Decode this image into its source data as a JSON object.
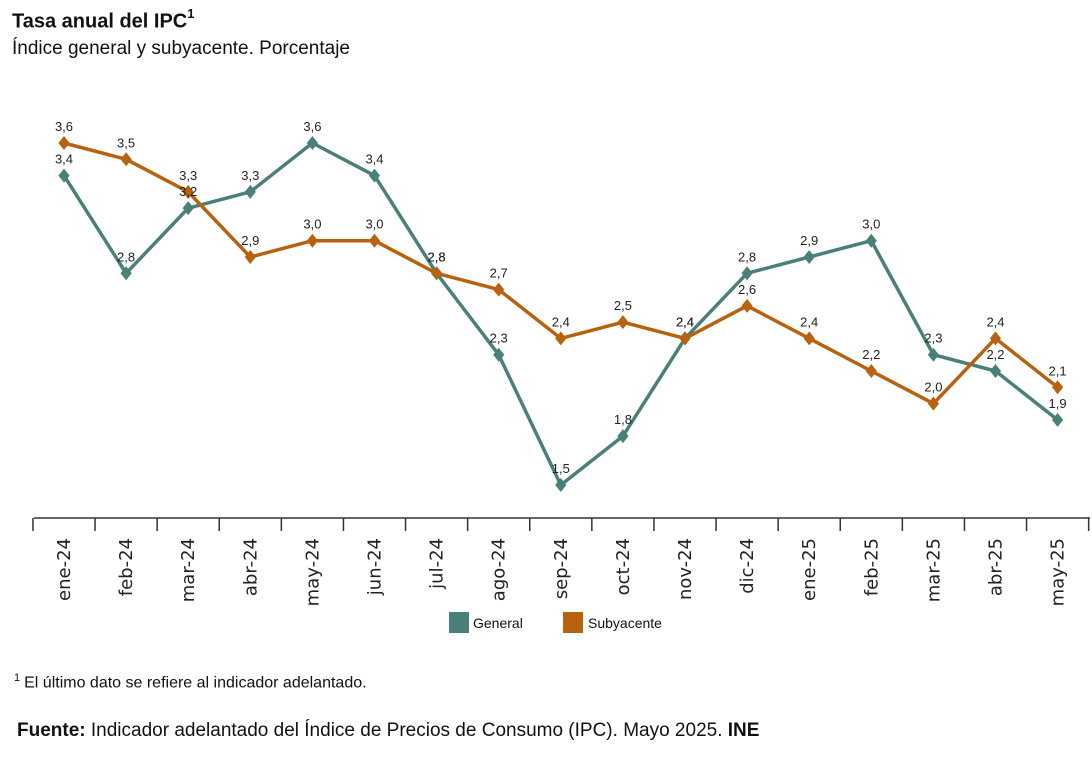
{
  "header": {
    "title": "Tasa anual del IPC",
    "title_sup": "1",
    "subtitle": "Índice general y subyacente. Porcentaje"
  },
  "chart_data": {
    "type": "line",
    "title": "Tasa anual del IPC",
    "subtitle": "Índice general y subyacente. Porcentaje",
    "categories": [
      "ene-24",
      "feb-24",
      "mar-24",
      "abr-24",
      "may-24",
      "jun-24",
      "jul-24",
      "ago-24",
      "sep-24",
      "oct-24",
      "nov-24",
      "dic-24",
      "ene-25",
      "feb-25",
      "mar-25",
      "abr-25",
      "may-25"
    ],
    "series": [
      {
        "name": "General",
        "color": "#4a8079",
        "values": [
          3.4,
          2.8,
          3.2,
          3.3,
          3.6,
          3.4,
          2.8,
          2.3,
          1.5,
          1.8,
          2.4,
          2.8,
          2.9,
          3.0,
          2.3,
          2.2,
          1.9
        ],
        "labels": [
          "3,4",
          "2,8",
          "3,2",
          "3,3",
          "3,6",
          "3,4",
          "2,8",
          "2,3",
          "1,5",
          "1,8",
          "2,4",
          "2,8",
          "2,9",
          "3,0",
          "2,3",
          "2,2",
          "1,9"
        ]
      },
      {
        "name": "Subyacente",
        "color": "#b8620f",
        "values": [
          3.6,
          3.5,
          3.3,
          2.9,
          3.0,
          3.0,
          2.8,
          2.7,
          2.4,
          2.5,
          2.4,
          2.6,
          2.4,
          2.2,
          2.0,
          2.4,
          2.1
        ],
        "labels": [
          "3,6",
          "3,5",
          "3,3",
          "2,9",
          "3,0",
          "3,0",
          "2,8",
          "2,7",
          "2,4",
          "2,5",
          "2,4",
          "2,6",
          "2,4",
          "2,2",
          "2,0",
          "2,4",
          "2,1"
        ]
      }
    ],
    "ylim": [
      0.9,
      4.0
    ],
    "legend": "bottom-center",
    "grid": false
  },
  "footnote": {
    "marker": "1",
    "text": "El último dato se refiere al indicador adelantado."
  },
  "source": {
    "label": "Fuente:",
    "text": "Indicador adelantado del Índice de Precios de Consumo (IPC).  Mayo 2025.",
    "org": "INE"
  }
}
